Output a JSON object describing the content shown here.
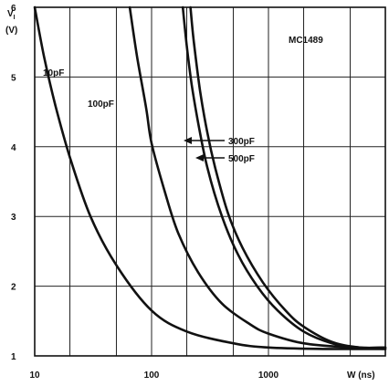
{
  "chart_data": {
    "type": "line",
    "title": "MC1489",
    "ylabel_line1": "V",
    "ylabel_subscript": "I",
    "ylabel_line2": "(V)",
    "xlabel": "W (ns)",
    "x_scale": "log",
    "xlim": [
      10,
      10000
    ],
    "ylim": [
      1,
      6
    ],
    "grid": true,
    "x_ticks": [
      "10",
      "100",
      "1000"
    ],
    "y_ticks": [
      "1",
      "2",
      "3",
      "4",
      "5",
      "6"
    ],
    "series": [
      {
        "name": "10pF",
        "x": [
          10,
          12,
          15,
          20,
          30,
          50,
          100,
          200,
          500,
          1000,
          3000,
          10000
        ],
        "y": [
          6.0,
          5.3,
          4.6,
          3.85,
          3.0,
          2.3,
          1.65,
          1.35,
          1.18,
          1.12,
          1.1,
          1.1
        ]
      },
      {
        "name": "100pF",
        "x": [
          65,
          75,
          90,
          100,
          130,
          170,
          250,
          400,
          700,
          1000,
          2000,
          5000,
          10000
        ],
        "y": [
          6.0,
          5.3,
          4.55,
          4.05,
          3.35,
          2.75,
          2.2,
          1.75,
          1.45,
          1.32,
          1.18,
          1.12,
          1.1
        ]
      },
      {
        "name": "300pF",
        "x": [
          185,
          200,
          220,
          250,
          300,
          400,
          550,
          800,
          1200,
          2000,
          3500,
          6000,
          10000
        ],
        "y": [
          6.0,
          5.45,
          4.9,
          4.35,
          3.7,
          3.0,
          2.45,
          2.0,
          1.65,
          1.35,
          1.18,
          1.12,
          1.12
        ]
      },
      {
        "name": "500pF",
        "x": [
          215,
          230,
          260,
          300,
          350,
          450,
          600,
          900,
          1400,
          2000,
          3500,
          6000,
          10000
        ],
        "y": [
          6.0,
          5.5,
          4.8,
          4.2,
          3.7,
          3.05,
          2.55,
          2.05,
          1.65,
          1.42,
          1.2,
          1.12,
          1.12
        ]
      }
    ]
  }
}
